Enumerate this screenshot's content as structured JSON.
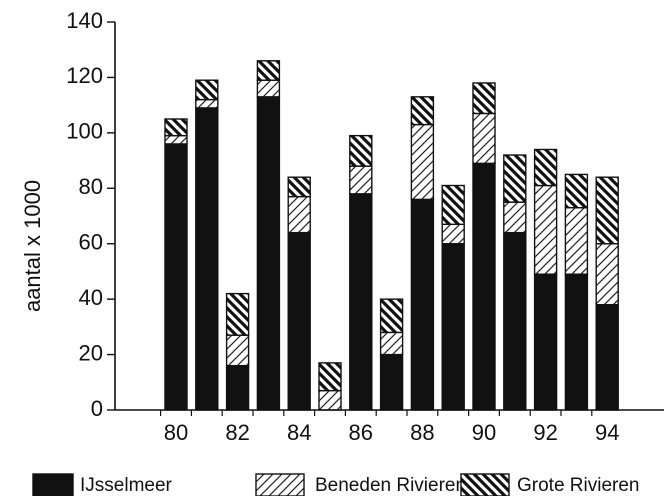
{
  "chart_data": {
    "type": "bar",
    "stacked": true,
    "ylabel": "aantal x 1000",
    "xlabel": "",
    "ylim": [
      0,
      140
    ],
    "y_ticks": [
      0,
      20,
      40,
      60,
      80,
      100,
      120,
      140
    ],
    "x": [
      80,
      81,
      82,
      83,
      84,
      85,
      86,
      87,
      88,
      89,
      90,
      91,
      92,
      93,
      94
    ],
    "x_tick_labels": [
      {
        "x": 80,
        "label": "80"
      },
      {
        "x": 82,
        "label": "82"
      },
      {
        "x": 84,
        "label": "84"
      },
      {
        "x": 86,
        "label": "86"
      },
      {
        "x": 88,
        "label": "88"
      },
      {
        "x": 90,
        "label": "90"
      },
      {
        "x": 92,
        "label": "92"
      },
      {
        "x": 94,
        "label": "94"
      }
    ],
    "series": [
      {
        "name": "IJsselmeer",
        "pattern": "solid",
        "color": "#111111",
        "values": [
          96,
          109,
          16,
          113,
          64,
          0,
          78,
          20,
          76,
          60,
          89,
          64,
          49,
          49,
          38
        ]
      },
      {
        "name": "Beneden Rivieren",
        "pattern": "forward-hatch",
        "color": "#222222",
        "values": [
          3,
          3,
          11,
          6,
          13,
          7,
          10,
          8,
          27,
          7,
          18,
          11,
          32,
          24,
          22
        ]
      },
      {
        "name": "Grote Rivieren",
        "pattern": "back-hatch",
        "color": "#111111",
        "values": [
          6,
          7,
          15,
          7,
          7,
          10,
          11,
          12,
          10,
          14,
          11,
          17,
          13,
          12,
          24
        ]
      }
    ],
    "legend_position": "bottom",
    "grid": false
  }
}
